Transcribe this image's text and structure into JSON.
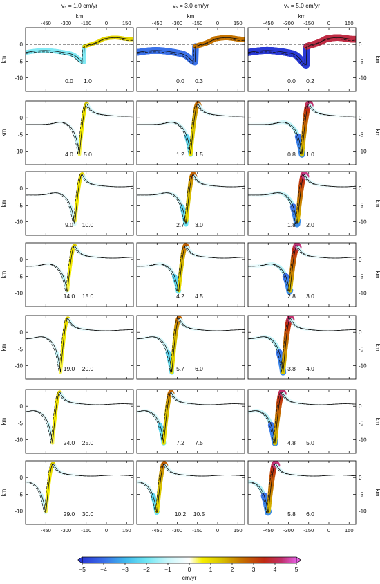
{
  "column_titles": [
    "vₛ = 1.0 cm/yr",
    "vₛ = 3.0 cm/yr",
    "vₛ = 5.0 cm/yr"
  ],
  "top_axis_label": "km",
  "y_axis_label": "km",
  "colorbar_label": "cm/yr",
  "colorbar_ticks": [
    "-5",
    "-4",
    "-3",
    "-2",
    "-1",
    "0",
    "1",
    "2",
    "3",
    "4",
    "5"
  ],
  "colors": {
    "blue": "#1f3fcf",
    "cyan": "#5fe3ef",
    "white": "#ffffff",
    "yellow": "#f2e500",
    "orange": "#d07300",
    "red": "#cc1b12",
    "magenta": "#e55ae0"
  },
  "chart_data": {
    "type": "line",
    "description_panels": "7 rows x 3 columns of topography profiles; colored bands show velocity (cm/yr)",
    "xlim": [
      -600,
      200
    ],
    "ylim": [
      -14,
      5
    ],
    "x_ticks": [
      -450,
      -300,
      -150,
      0,
      150
    ],
    "y_ticks": [
      -10,
      -5,
      0
    ],
    "colorbar_range": [
      -5,
      5
    ],
    "columns": [
      {
        "vs": "1.0 cm/yr",
        "rows": [
          {
            "labels": [
              "0.0",
              "1.0"
            ],
            "trench_x": -165,
            "min_y": -4
          },
          {
            "labels": [
              "4.0",
              "5.0"
            ],
            "trench_x": -200,
            "min_y": -11
          },
          {
            "labels": [
              "9.0",
              "10.0"
            ],
            "trench_x": -235,
            "min_y": -11
          },
          {
            "labels": [
              "14.0",
              "15.0"
            ],
            "trench_x": -290,
            "min_y": -10
          },
          {
            "labels": [
              "19.0",
              "20.0"
            ],
            "trench_x": -340,
            "min_y": -12
          },
          {
            "labels": [
              "24.0",
              "25.0"
            ],
            "trench_x": -400,
            "min_y": -11
          },
          {
            "labels": [
              "29.0",
              "30.0"
            ],
            "trench_x": -450,
            "min_y": -11
          }
        ]
      },
      {
        "vs": "3.0 cm/yr",
        "rows": [
          {
            "labels": [
              "0.0",
              "0.3"
            ],
            "trench_x": -165,
            "min_y": -4
          },
          {
            "labels": [
              "1.2",
              "1.5"
            ],
            "trench_x": -200,
            "min_y": -11
          },
          {
            "labels": [
              "2.7",
              "3.0"
            ],
            "trench_x": -235,
            "min_y": -11
          },
          {
            "labels": [
              "4.2",
              "4.5"
            ],
            "trench_x": -290,
            "min_y": -10
          },
          {
            "labels": [
              "5.7",
              "6.0"
            ],
            "trench_x": -340,
            "min_y": -12
          },
          {
            "labels": [
              "7.2",
              "7.5"
            ],
            "trench_x": -400,
            "min_y": -11
          },
          {
            "labels": [
              "10.2",
              "10.5"
            ],
            "trench_x": -450,
            "min_y": -11
          }
        ]
      },
      {
        "vs": "5.0 cm/yr",
        "rows": [
          {
            "labels": [
              "0.0",
              "0.2"
            ],
            "trench_x": -165,
            "min_y": -5
          },
          {
            "labels": [
              "0.8",
              "1.0"
            ],
            "trench_x": -200,
            "min_y": -11
          },
          {
            "labels": [
              "1.8",
              "2.0"
            ],
            "trench_x": -235,
            "min_y": -11
          },
          {
            "labels": [
              "2.8",
              "3.0"
            ],
            "trench_x": -290,
            "min_y": -10
          },
          {
            "labels": [
              "3.8",
              "4.0"
            ],
            "trench_x": -340,
            "min_y": -12
          },
          {
            "labels": [
              "4.8",
              "5.0"
            ],
            "trench_x": -400,
            "min_y": -11
          },
          {
            "labels": [
              "5.8",
              "6.0"
            ],
            "trench_x": -450,
            "min_y": -11
          }
        ]
      }
    ]
  }
}
